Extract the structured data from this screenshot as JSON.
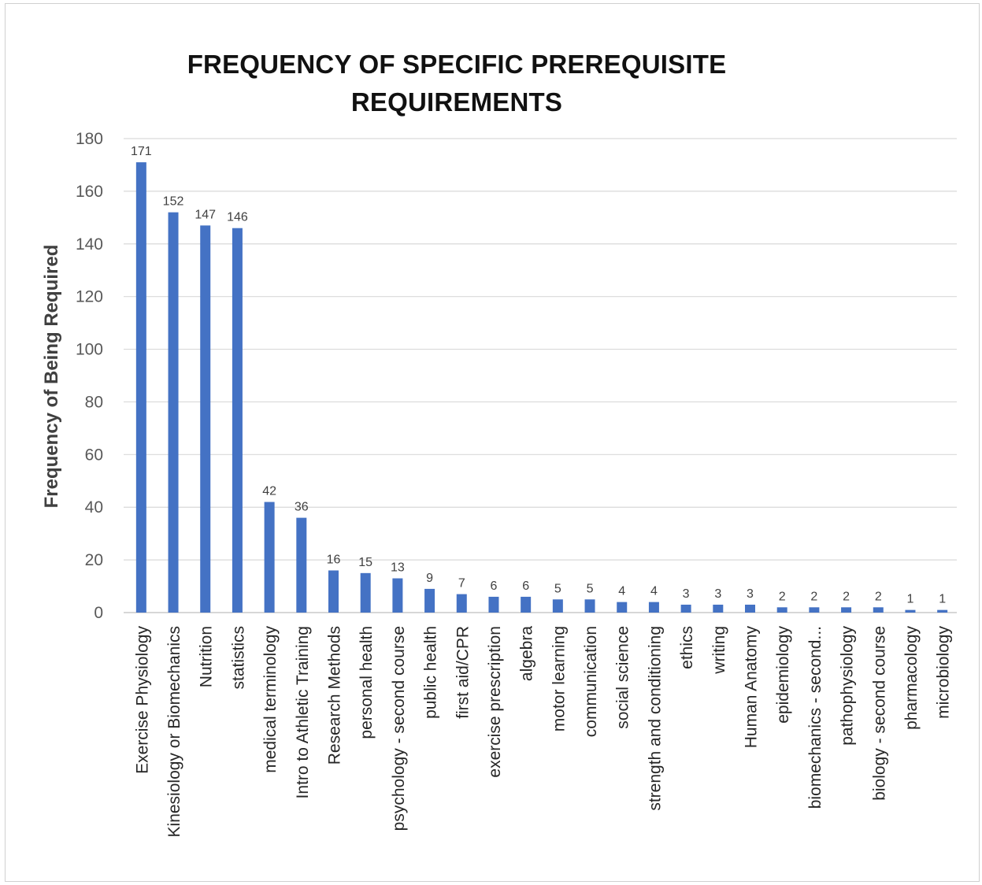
{
  "chart_data": {
    "type": "bar",
    "title": "FREQUENCY OF SPECIFIC PREREQUISITE REQUIREMENTS",
    "ylabel": "Frequency of Being Required",
    "xlabel": "",
    "ylim": [
      0,
      180
    ],
    "ytick_step": 20,
    "grid": true,
    "bar_color": "#4472C4",
    "categories": [
      "Exercise Physiology",
      "Kinesiology or Biomechanics",
      "Nutrition",
      "statistics",
      "medical terminology",
      "Intro to Athletic Training",
      "Research Methods",
      "personal health",
      "psychology - second course",
      "public health",
      "first aid/CPR",
      "exercise prescription",
      "algebra",
      "motor learning",
      "communication",
      "social science",
      "strength and conditioning",
      "ethics",
      "writing",
      "Human Anatomy",
      "epidemiology",
      "biomechanics - second...",
      "pathophysiology",
      "biology - second course",
      "pharmacology",
      "microbiology"
    ],
    "values": [
      171,
      152,
      147,
      146,
      42,
      36,
      16,
      15,
      13,
      9,
      7,
      6,
      6,
      5,
      5,
      4,
      4,
      3,
      3,
      3,
      2,
      2,
      2,
      2,
      1,
      1
    ]
  }
}
